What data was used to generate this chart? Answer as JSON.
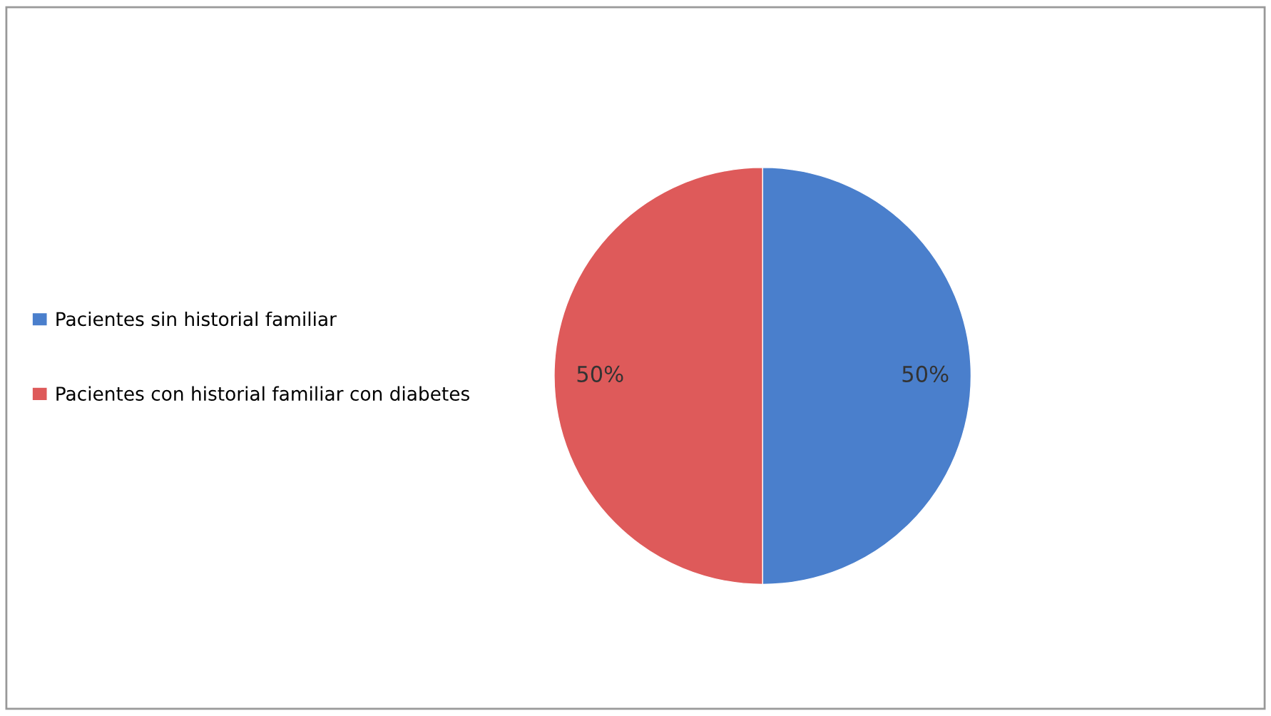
{
  "chart_data": {
    "type": "pie",
    "categories": [
      "Pacientes sin historial familiar",
      "Pacientes con historial familiar con diabetes"
    ],
    "values": [
      50,
      50
    ],
    "colors": [
      "#4a7fcc",
      "#de5a5a"
    ],
    "value_labels": [
      "50%",
      "50%"
    ],
    "legend": "left"
  }
}
